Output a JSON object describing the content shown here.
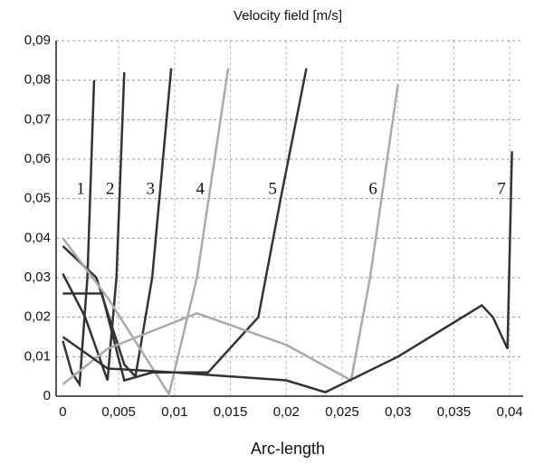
{
  "chart_data": {
    "type": "line",
    "title": "Velocity field [m/s]",
    "x_label": "Arc-length",
    "xlim": [
      -0.0006,
      0.0412
    ],
    "ylim": [
      0,
      0.09
    ],
    "xticks": [
      0,
      {
        "value": 0.005,
        "label": "0,005"
      },
      {
        "value": 0.01,
        "label": "0,01"
      },
      {
        "value": 0.015,
        "label": "0,015"
      },
      {
        "value": 0.02,
        "label": "0,02"
      },
      {
        "value": 0.025,
        "label": "0,025"
      },
      {
        "value": 0.03,
        "label": "0,03"
      },
      {
        "value": 0.035,
        "label": "0,035"
      },
      {
        "value": 0.04,
        "label": "0,04"
      }
    ],
    "yticks": [
      0,
      {
        "value": 0.01,
        "label": "0,01"
      },
      {
        "value": 0.02,
        "label": "0,02"
      },
      {
        "value": 0.03,
        "label": "0,03"
      },
      {
        "value": 0.04,
        "label": "0,04"
      },
      {
        "value": 0.05,
        "label": "0,05"
      },
      {
        "value": 0.06,
        "label": "0,06"
      },
      {
        "value": 0.07,
        "label": "0,07"
      },
      {
        "value": 0.08,
        "label": "0,08"
      },
      {
        "value": 0.09,
        "label": "0,09"
      }
    ],
    "grid": true,
    "series": [
      {
        "name": "1",
        "color": "#333333",
        "x": [
          0,
          0.0008,
          0.0015,
          0.0022,
          0.0028
        ],
        "values": [
          0.014,
          0.006,
          0.003,
          0.03,
          0.08
        ]
      },
      {
        "name": "2",
        "color": "#333333",
        "x": [
          0,
          0.002,
          0.004,
          0.0048,
          0.0055
        ],
        "values": [
          0.031,
          0.02,
          0.004,
          0.03,
          0.082
        ]
      },
      {
        "name": "3",
        "color": "#333333",
        "x": [
          0,
          0.003,
          0.0055,
          0.0065,
          0.008,
          0.0097
        ],
        "values": [
          0.038,
          0.03,
          0.008,
          0.005,
          0.03,
          0.083
        ]
      },
      {
        "name": "4",
        "color": "#aaaaaa",
        "x": [
          0,
          0.004,
          0.0095,
          0.012,
          0.0148
        ],
        "values": [
          0.04,
          0.025,
          0.0005,
          0.03,
          0.083
        ]
      },
      {
        "name": "5",
        "color": "#333333",
        "x": [
          0,
          0.0035,
          0.0055,
          0.008,
          0.013,
          0.0175,
          0.0195,
          0.0218
        ],
        "values": [
          0.026,
          0.026,
          0.004,
          0.006,
          0.006,
          0.02,
          0.05,
          0.083
        ]
      },
      {
        "name": "6",
        "color": "#aaaaaa",
        "x": [
          0,
          0.004,
          0.012,
          0.02,
          0.0258,
          0.0275,
          0.03
        ],
        "values": [
          0.003,
          0.012,
          0.021,
          0.013,
          0.004,
          0.03,
          0.079
        ]
      },
      {
        "name": "7",
        "color": "#333333",
        "x": [
          0,
          0.004,
          0.01,
          0.02,
          0.0235,
          0.03,
          0.0375,
          0.0385,
          0.0398,
          0.0402
        ],
        "values": [
          0.015,
          0.007,
          0.006,
          0.004,
          0.001,
          0.01,
          0.023,
          0.02,
          0.012,
          0.062
        ]
      }
    ]
  }
}
